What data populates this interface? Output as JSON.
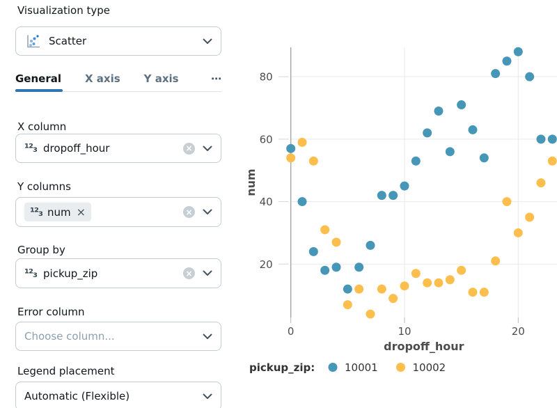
{
  "panel": {
    "visualization_type": {
      "label": "Visualization type",
      "value": "Scatter"
    },
    "tabs": {
      "items": [
        {
          "label": "General",
          "active": true
        },
        {
          "label": "X axis",
          "active": false
        },
        {
          "label": "Y axis",
          "active": false
        }
      ],
      "overflow": "⋯"
    },
    "x_column": {
      "label": "X column",
      "value": "dropoff_hour"
    },
    "y_columns": {
      "label": "Y columns",
      "chip": "num"
    },
    "group_by": {
      "label": "Group by",
      "value": "pickup_zip"
    },
    "error_column": {
      "label": "Error column",
      "placeholder": "Choose column..."
    },
    "legend_placement": {
      "label": "Legend placement",
      "value": "Automatic (Flexible)"
    },
    "icons": {
      "number_type": "¹²₃",
      "chip_remove": "×",
      "clear": "×"
    }
  },
  "chart_data": {
    "type": "scatter",
    "xlabel": "dropoff_hour",
    "ylabel": "num",
    "x": [
      0,
      1,
      2,
      3,
      4,
      5,
      6,
      7,
      8,
      9,
      10,
      11,
      12,
      13,
      14,
      15,
      16,
      17,
      18,
      19,
      20,
      21,
      22,
      23
    ],
    "series": [
      {
        "name": "10001",
        "color": "#4696b8",
        "values": [
          57,
          40,
          24,
          18,
          19,
          12,
          19,
          26,
          42,
          42,
          45,
          53,
          62,
          69,
          56,
          71,
          63,
          54,
          81,
          85,
          88,
          80,
          60,
          60
        ]
      },
      {
        "name": "10002",
        "color": "#fcbf4e",
        "values": [
          54,
          59,
          53,
          31,
          27,
          7,
          12,
          4,
          12,
          9,
          13,
          17,
          14,
          14,
          15,
          18,
          11,
          11,
          21,
          40,
          30,
          35,
          46,
          53
        ]
      }
    ],
    "xticks": [
      0,
      10,
      20
    ],
    "yticks": [
      20,
      40,
      60,
      80
    ],
    "xlim": [
      -0.8,
      23.6
    ],
    "ylim": [
      2.9,
      89.4
    ],
    "grid": true,
    "legend": {
      "title": "pickup_zip:",
      "position": "bottom"
    },
    "colors": {
      "gridline": "#e9e9e9",
      "axis_line": "#a8a8a8",
      "tick_text": "#4d4d4d"
    }
  }
}
